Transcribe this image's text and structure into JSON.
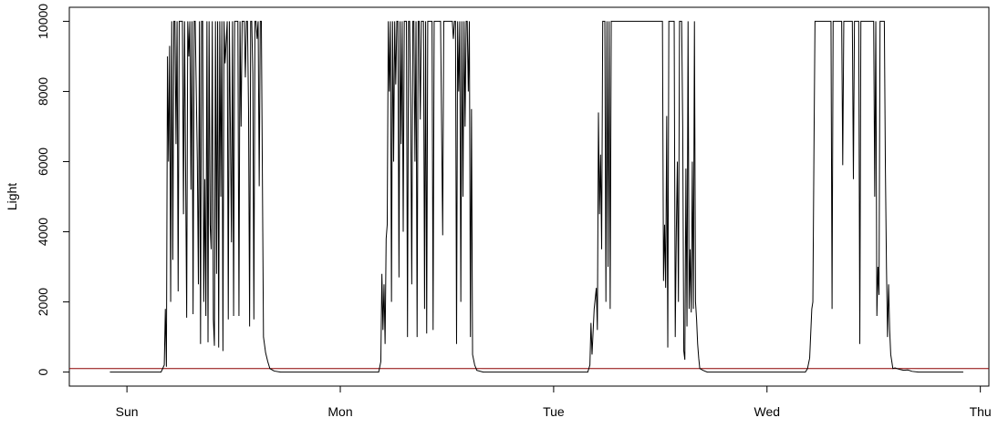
{
  "chart_data": {
    "type": "line",
    "title": "",
    "xlabel": "",
    "ylabel": "Light",
    "ylim": [
      -400,
      10400
    ],
    "xlim": [
      -0.27,
      4.04
    ],
    "x_ticks": [
      {
        "value": 0,
        "label": "Sun"
      },
      {
        "value": 1,
        "label": "Mon"
      },
      {
        "value": 2,
        "label": "Tue"
      },
      {
        "value": 3,
        "label": "Wed"
      },
      {
        "value": 4,
        "label": "Thu"
      }
    ],
    "y_ticks": [
      {
        "value": 0,
        "label": "0"
      },
      {
        "value": 2000,
        "label": "2000"
      },
      {
        "value": 4000,
        "label": "4000"
      },
      {
        "value": 6000,
        "label": "6000"
      },
      {
        "value": 8000,
        "label": "8000"
      },
      {
        "value": 10000,
        "label": "10000"
      }
    ],
    "grid": false,
    "threshold": {
      "value": 100,
      "color": "#8B0000"
    },
    "series": [
      {
        "color": "#000000",
        "points": [
          [
            -0.08,
            0
          ],
          [
            0.12,
            0
          ],
          [
            0.16,
            0
          ],
          [
            0.175,
            200
          ],
          [
            0.18,
            1800
          ],
          [
            0.185,
            150
          ],
          [
            0.19,
            9000
          ],
          [
            0.195,
            6000
          ],
          [
            0.2,
            9300
          ],
          [
            0.205,
            2000
          ],
          [
            0.21,
            10000
          ],
          [
            0.215,
            3200
          ],
          [
            0.22,
            10000
          ],
          [
            0.225,
            10000
          ],
          [
            0.23,
            6500
          ],
          [
            0.235,
            10000
          ],
          [
            0.24,
            2300
          ],
          [
            0.245,
            10000
          ],
          [
            0.25,
            10000
          ],
          [
            0.26,
            10000
          ],
          [
            0.265,
            4500
          ],
          [
            0.27,
            10000
          ],
          [
            0.28,
            1550
          ],
          [
            0.285,
            10000
          ],
          [
            0.29,
            9000
          ],
          [
            0.295,
            10000
          ],
          [
            0.3,
            5200
          ],
          [
            0.305,
            10000
          ],
          [
            0.31,
            1650
          ],
          [
            0.315,
            10000
          ],
          [
            0.32,
            10000
          ],
          [
            0.33,
            6000
          ],
          [
            0.335,
            2500
          ],
          [
            0.34,
            10000
          ],
          [
            0.345,
            800
          ],
          [
            0.35,
            10000
          ],
          [
            0.355,
            10000
          ],
          [
            0.36,
            2000
          ],
          [
            0.365,
            5500
          ],
          [
            0.37,
            1600
          ],
          [
            0.375,
            10000
          ],
          [
            0.38,
            850
          ],
          [
            0.385,
            10000
          ],
          [
            0.39,
            4200
          ],
          [
            0.395,
            3500
          ],
          [
            0.4,
            10000
          ],
          [
            0.405,
            1500
          ],
          [
            0.41,
            750
          ],
          [
            0.415,
            10000
          ],
          [
            0.42,
            2800
          ],
          [
            0.425,
            10000
          ],
          [
            0.43,
            700
          ],
          [
            0.435,
            10000
          ],
          [
            0.44,
            5000
          ],
          [
            0.445,
            10000
          ],
          [
            0.45,
            600
          ],
          [
            0.455,
            10000
          ],
          [
            0.46,
            8800
          ],
          [
            0.47,
            10000
          ],
          [
            0.475,
            1500
          ],
          [
            0.48,
            10000
          ],
          [
            0.49,
            3700
          ],
          [
            0.495,
            10000
          ],
          [
            0.5,
            1600
          ],
          [
            0.505,
            10000
          ],
          [
            0.51,
            10000
          ],
          [
            0.52,
            10000
          ],
          [
            0.525,
            1600
          ],
          [
            0.53,
            10000
          ],
          [
            0.535,
            7000
          ],
          [
            0.54,
            10000
          ],
          [
            0.55,
            10000
          ],
          [
            0.555,
            8400
          ],
          [
            0.56,
            10000
          ],
          [
            0.565,
            10000
          ],
          [
            0.57,
            7500
          ],
          [
            0.575,
            1300
          ],
          [
            0.58,
            10000
          ],
          [
            0.585,
            10000
          ],
          [
            0.59,
            8500
          ],
          [
            0.595,
            1500
          ],
          [
            0.6,
            10000
          ],
          [
            0.605,
            10000
          ],
          [
            0.61,
            9500
          ],
          [
            0.615,
            10000
          ],
          [
            0.62,
            5300
          ],
          [
            0.625,
            10000
          ],
          [
            0.63,
            10000
          ],
          [
            0.64,
            1000
          ],
          [
            0.65,
            550
          ],
          [
            0.66,
            300
          ],
          [
            0.67,
            100
          ],
          [
            0.69,
            30
          ],
          [
            0.72,
            0
          ],
          [
            1.18,
            0
          ],
          [
            1.19,
            300
          ],
          [
            1.195,
            2800
          ],
          [
            1.2,
            1200
          ],
          [
            1.205,
            2500
          ],
          [
            1.21,
            800
          ],
          [
            1.215,
            3800
          ],
          [
            1.22,
            4200
          ],
          [
            1.225,
            10000
          ],
          [
            1.23,
            8000
          ],
          [
            1.235,
            10000
          ],
          [
            1.24,
            2000
          ],
          [
            1.245,
            10000
          ],
          [
            1.25,
            6000
          ],
          [
            1.255,
            10000
          ],
          [
            1.26,
            8200
          ],
          [
            1.265,
            10000
          ],
          [
            1.27,
            10000
          ],
          [
            1.275,
            2700
          ],
          [
            1.28,
            10000
          ],
          [
            1.285,
            6500
          ],
          [
            1.29,
            10000
          ],
          [
            1.295,
            4000
          ],
          [
            1.3,
            10000
          ],
          [
            1.31,
            10000
          ],
          [
            1.315,
            1000
          ],
          [
            1.32,
            10000
          ],
          [
            1.325,
            10000
          ],
          [
            1.33,
            7500
          ],
          [
            1.335,
            2500
          ],
          [
            1.34,
            10000
          ],
          [
            1.345,
            10000
          ],
          [
            1.35,
            6000
          ],
          [
            1.355,
            10000
          ],
          [
            1.36,
            1000
          ],
          [
            1.365,
            10000
          ],
          [
            1.37,
            10000
          ],
          [
            1.375,
            7200
          ],
          [
            1.38,
            10000
          ],
          [
            1.385,
            10000
          ],
          [
            1.39,
            10000
          ],
          [
            1.395,
            1800
          ],
          [
            1.4,
            10000
          ],
          [
            1.405,
            1100
          ],
          [
            1.41,
            10000
          ],
          [
            1.42,
            10000
          ],
          [
            1.43,
            10000
          ],
          [
            1.435,
            1200
          ],
          [
            1.44,
            10000
          ],
          [
            1.45,
            10000
          ],
          [
            1.46,
            10000
          ],
          [
            1.47,
            10000
          ],
          [
            1.48,
            3900
          ],
          [
            1.485,
            10000
          ],
          [
            1.49,
            10000
          ],
          [
            1.5,
            10000
          ],
          [
            1.51,
            10000
          ],
          [
            1.52,
            10000
          ],
          [
            1.525,
            10000
          ],
          [
            1.53,
            9500
          ],
          [
            1.535,
            10000
          ],
          [
            1.54,
            10000
          ],
          [
            1.545,
            800
          ],
          [
            1.55,
            10000
          ],
          [
            1.555,
            8000
          ],
          [
            1.56,
            10000
          ],
          [
            1.565,
            2000
          ],
          [
            1.57,
            10000
          ],
          [
            1.575,
            5000
          ],
          [
            1.58,
            10000
          ],
          [
            1.585,
            7000
          ],
          [
            1.59,
            10000
          ],
          [
            1.595,
            10000
          ],
          [
            1.6,
            8000
          ],
          [
            1.605,
            10000
          ],
          [
            1.61,
            1000
          ],
          [
            1.615,
            7500
          ],
          [
            1.62,
            500
          ],
          [
            1.63,
            200
          ],
          [
            1.64,
            50
          ],
          [
            1.67,
            0
          ],
          [
            2.16,
            0
          ],
          [
            2.17,
            200
          ],
          [
            2.175,
            1400
          ],
          [
            2.18,
            500
          ],
          [
            2.19,
            1800
          ],
          [
            2.2,
            2400
          ],
          [
            2.205,
            1200
          ],
          [
            2.21,
            7400
          ],
          [
            2.215,
            4500
          ],
          [
            2.22,
            6200
          ],
          [
            2.225,
            3500
          ],
          [
            2.23,
            10000
          ],
          [
            2.24,
            10000
          ],
          [
            2.245,
            2000
          ],
          [
            2.25,
            10000
          ],
          [
            2.255,
            3000
          ],
          [
            2.26,
            10000
          ],
          [
            2.265,
            1800
          ],
          [
            2.27,
            10000
          ],
          [
            2.28,
            10000
          ],
          [
            2.3,
            10000
          ],
          [
            2.35,
            10000
          ],
          [
            2.4,
            10000
          ],
          [
            2.45,
            10000
          ],
          [
            2.5,
            10000
          ],
          [
            2.51,
            10000
          ],
          [
            2.515,
            2600
          ],
          [
            2.52,
            4200
          ],
          [
            2.525,
            2400
          ],
          [
            2.53,
            7300
          ],
          [
            2.535,
            700
          ],
          [
            2.54,
            10000
          ],
          [
            2.55,
            10000
          ],
          [
            2.56,
            10000
          ],
          [
            2.565,
            10000
          ],
          [
            2.57,
            1000
          ],
          [
            2.575,
            4000
          ],
          [
            2.58,
            6000
          ],
          [
            2.585,
            2000
          ],
          [
            2.59,
            10000
          ],
          [
            2.595,
            10000
          ],
          [
            2.6,
            10000
          ],
          [
            2.605,
            7000
          ],
          [
            2.61,
            600
          ],
          [
            2.615,
            350
          ],
          [
            2.62,
            5800
          ],
          [
            2.625,
            1300
          ],
          [
            2.63,
            10000
          ],
          [
            2.635,
            1800
          ],
          [
            2.64,
            3500
          ],
          [
            2.645,
            1700
          ],
          [
            2.65,
            6000
          ],
          [
            2.655,
            1800
          ],
          [
            2.66,
            10000
          ],
          [
            2.665,
            2000
          ],
          [
            2.67,
            1500
          ],
          [
            2.675,
            800
          ],
          [
            2.68,
            400
          ],
          [
            2.685,
            100
          ],
          [
            2.7,
            50
          ],
          [
            2.72,
            0
          ],
          [
            3.18,
            0
          ],
          [
            3.19,
            100
          ],
          [
            3.2,
            400
          ],
          [
            3.21,
            1800
          ],
          [
            3.215,
            2000
          ],
          [
            3.22,
            6200
          ],
          [
            3.225,
            10000
          ],
          [
            3.23,
            10000
          ],
          [
            3.27,
            10000
          ],
          [
            3.3,
            10000
          ],
          [
            3.305,
            1800
          ],
          [
            3.31,
            10000
          ],
          [
            3.33,
            10000
          ],
          [
            3.35,
            10000
          ],
          [
            3.355,
            5900
          ],
          [
            3.36,
            10000
          ],
          [
            3.38,
            10000
          ],
          [
            3.4,
            10000
          ],
          [
            3.405,
            5500
          ],
          [
            3.41,
            10000
          ],
          [
            3.42,
            10000
          ],
          [
            3.43,
            10000
          ],
          [
            3.435,
            800
          ],
          [
            3.44,
            10000
          ],
          [
            3.46,
            10000
          ],
          [
            3.48,
            10000
          ],
          [
            3.5,
            10000
          ],
          [
            3.505,
            5000
          ],
          [
            3.51,
            10000
          ],
          [
            3.515,
            1600
          ],
          [
            3.52,
            3000
          ],
          [
            3.525,
            2200
          ],
          [
            3.53,
            10000
          ],
          [
            3.54,
            10000
          ],
          [
            3.55,
            10000
          ],
          [
            3.555,
            5800
          ],
          [
            3.56,
            3000
          ],
          [
            3.565,
            1000
          ],
          [
            3.57,
            2500
          ],
          [
            3.575,
            1200
          ],
          [
            3.58,
            500
          ],
          [
            3.59,
            100
          ],
          [
            3.6,
            120
          ],
          [
            3.62,
            80
          ],
          [
            3.64,
            50
          ],
          [
            3.66,
            60
          ],
          [
            3.68,
            20
          ],
          [
            3.71,
            0
          ],
          [
            3.92,
            0
          ]
        ]
      }
    ]
  }
}
